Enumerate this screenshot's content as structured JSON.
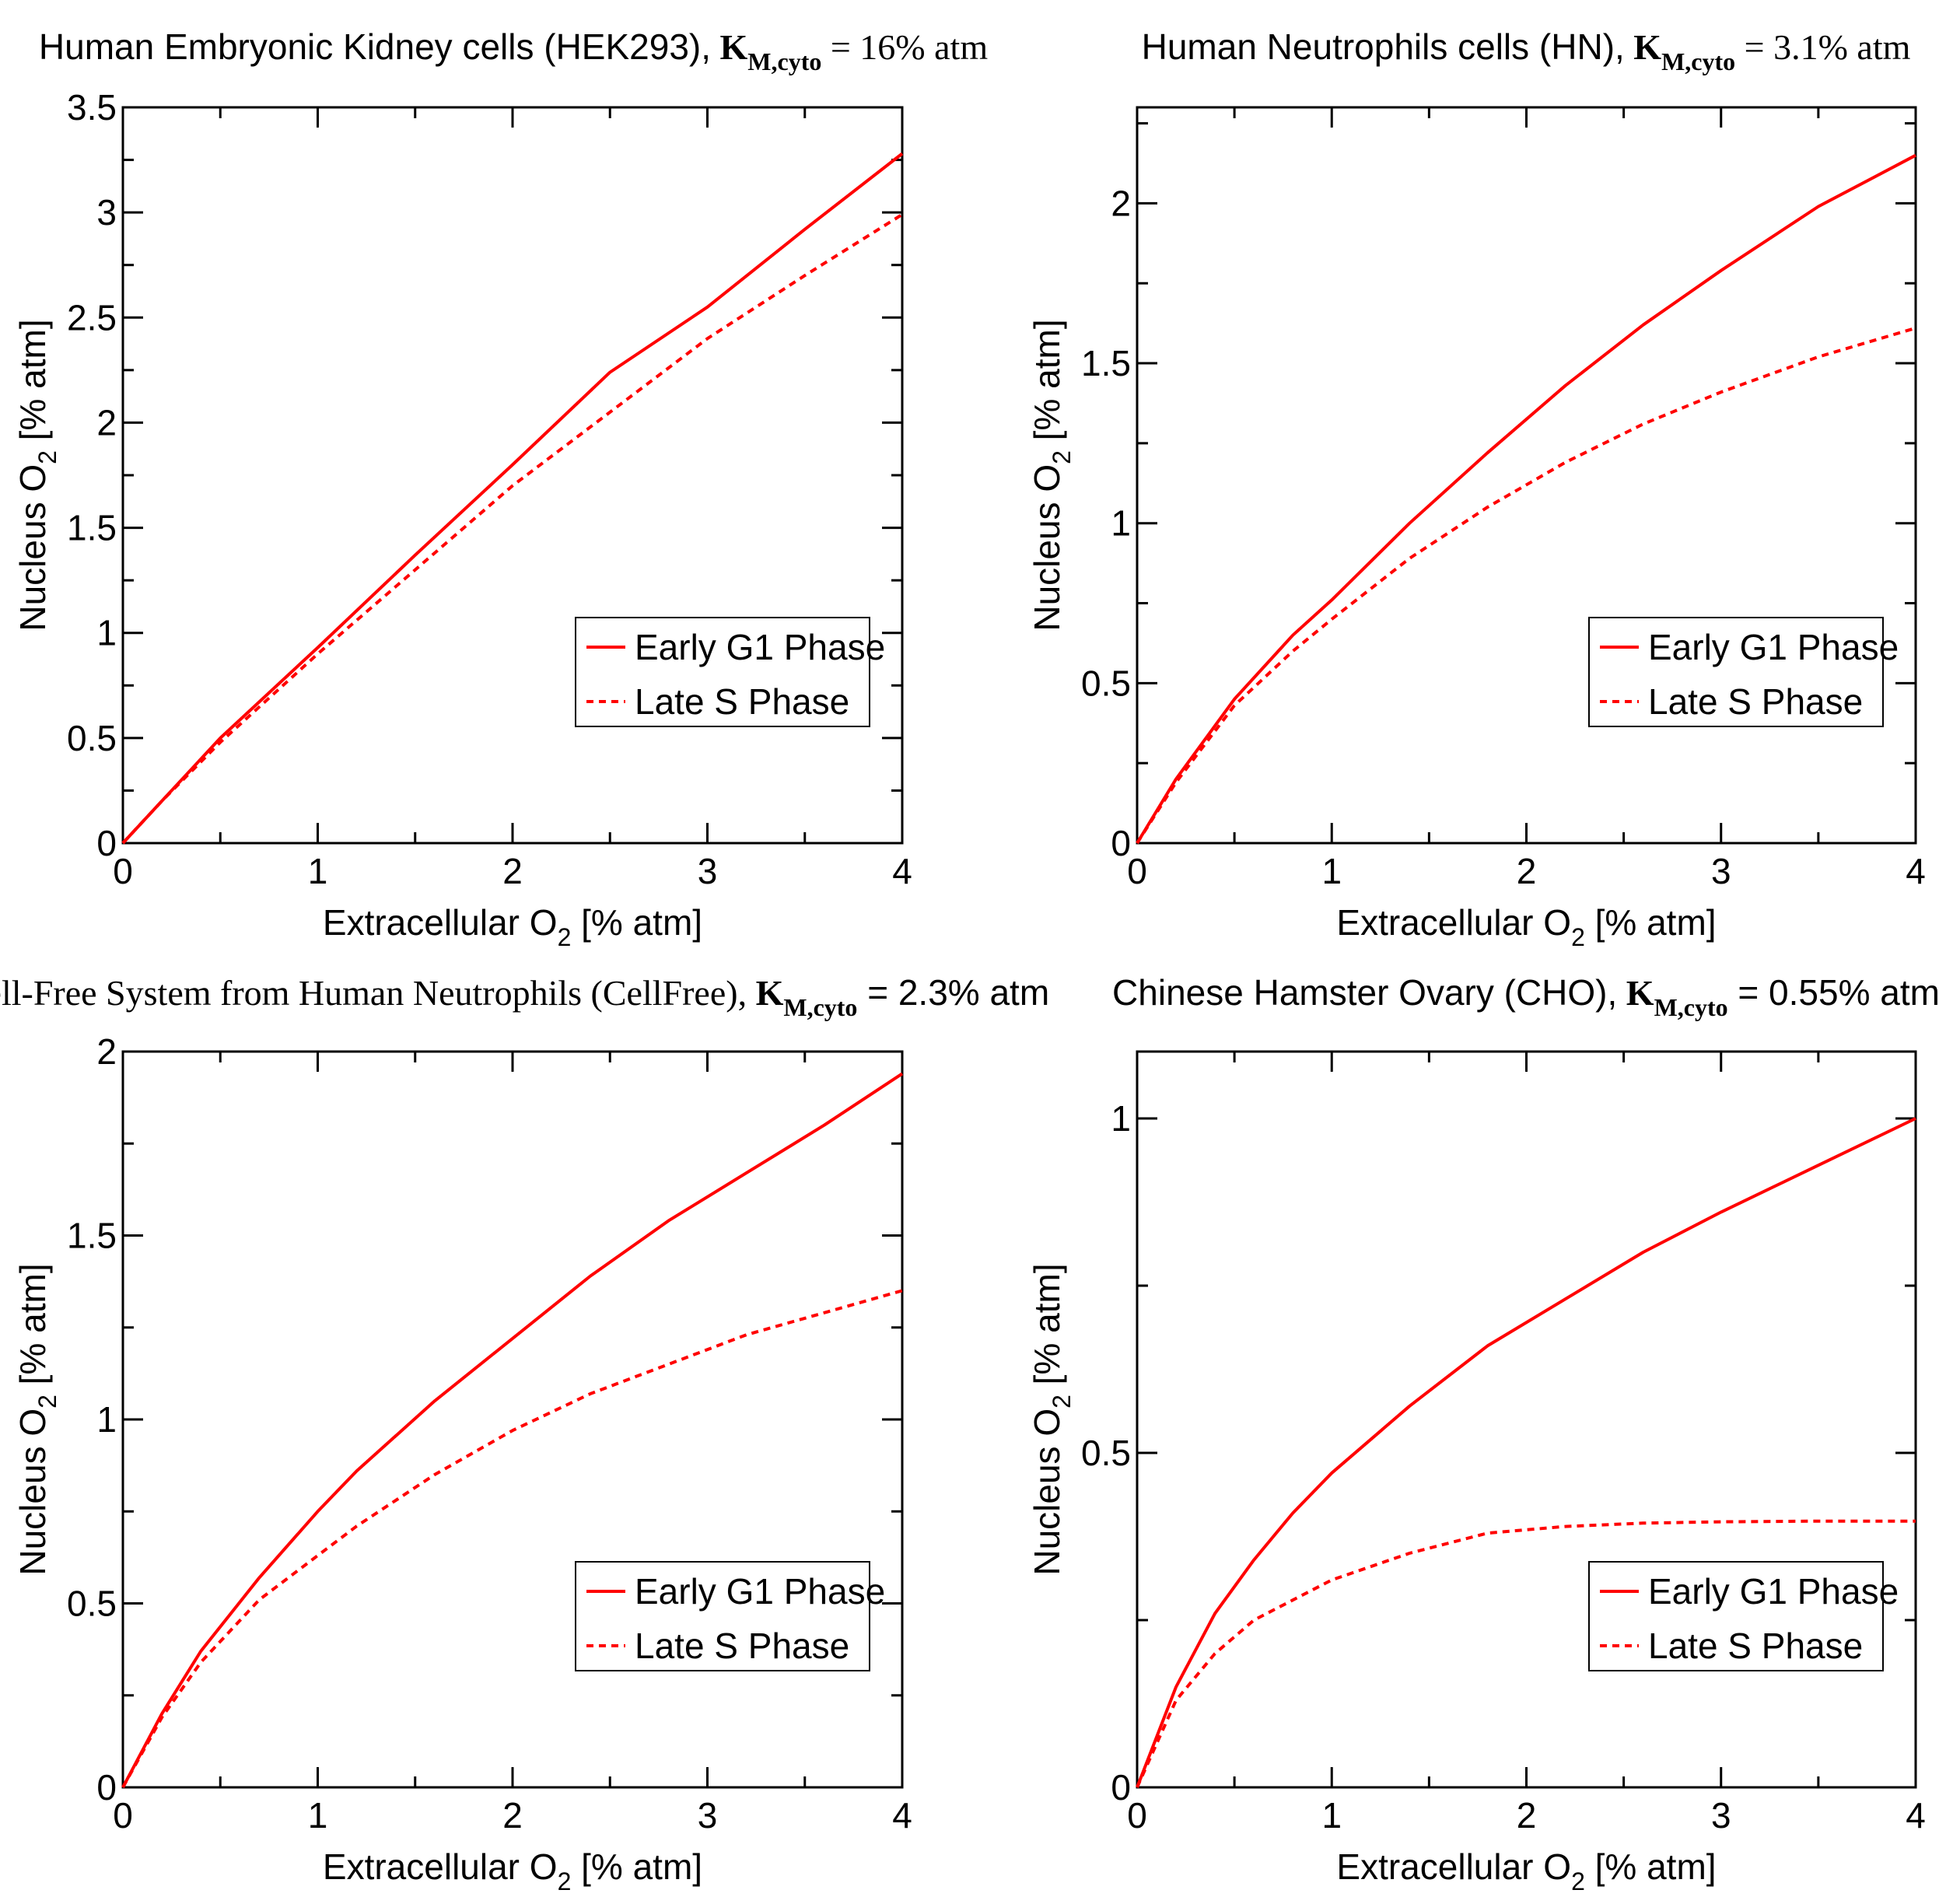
{
  "figure": {
    "series_colors": {
      "early": "#ff0000",
      "late": "#ff0000"
    },
    "frame_color": "#000000"
  },
  "chart_data": [
    {
      "type": "line",
      "title": {
        "text": "Human Embryonic Kidney cells (HEK293),",
        "symbol": "K",
        "subscript": "M,cyto",
        "value": "= 16% atm",
        "text_style": "sans",
        "value_style": "serif"
      },
      "xlabel": "Extracellular O",
      "xlabel_sub": "2",
      "xlabel_unit": "[% atm]",
      "ylabel": "Nucleus O",
      "ylabel_sub": "2",
      "ylabel_unit": "[% atm]",
      "xlim": [
        0,
        4
      ],
      "ylim": [
        0,
        3.5
      ],
      "xticks": [
        0,
        1,
        2,
        3,
        4
      ],
      "xtick_labels": [
        "0",
        "1",
        "2",
        "3",
        "4"
      ],
      "yticks": [
        0,
        0.5,
        1,
        1.5,
        2,
        2.5,
        3,
        3.5
      ],
      "ytick_labels": [
        "0",
        "0.5",
        "1",
        "1.5",
        "2",
        "2.5",
        "3",
        "3.5"
      ],
      "legend": {
        "position": "lower-right",
        "entries": [
          "Early G1 Phase",
          "Late S Phase"
        ]
      },
      "series": [
        {
          "name": "Early G1 Phase",
          "style": "solid",
          "x": [
            0,
            0.2,
            0.5,
            1,
            1.5,
            2,
            2.5,
            3,
            3.5,
            4
          ],
          "y": [
            0,
            0.2,
            0.5,
            0.93,
            1.37,
            1.8,
            2.24,
            2.55,
            2.92,
            3.28
          ]
        },
        {
          "name": "Late S Phase",
          "style": "dashed",
          "x": [
            0,
            0.2,
            0.5,
            1,
            1.5,
            2,
            2.5,
            3,
            3.5,
            4
          ],
          "y": [
            0,
            0.2,
            0.48,
            0.9,
            1.3,
            1.7,
            2.05,
            2.4,
            2.7,
            2.99
          ]
        }
      ]
    },
    {
      "type": "line",
      "title": {
        "text": "Human Neutrophils cells (HN),",
        "symbol": "K",
        "subscript": "M,cyto",
        "value": "= 3.1% atm",
        "text_style": "sans",
        "value_style": "serif"
      },
      "xlabel": "Extracellular O",
      "xlabel_sub": "2",
      "xlabel_unit": "[% atm]",
      "ylabel": "Nucleus O",
      "ylabel_sub": "2",
      "ylabel_unit": "[% atm]",
      "xlim": [
        0,
        4
      ],
      "ylim": [
        0,
        2.3
      ],
      "xticks": [
        0,
        1,
        2,
        3,
        4
      ],
      "xtick_labels": [
        "0",
        "1",
        "2",
        "3",
        "4"
      ],
      "yticks": [
        0,
        0.5,
        1,
        1.5,
        2
      ],
      "ytick_labels": [
        "0",
        "0.5",
        "1",
        "1.5",
        "2"
      ],
      "legend": {
        "position": "lower-right",
        "entries": [
          "Early G1 Phase",
          "Late S Phase"
        ]
      },
      "series": [
        {
          "name": "Early G1 Phase",
          "style": "solid",
          "x": [
            0,
            0.2,
            0.5,
            0.8,
            1,
            1.4,
            1.8,
            2.2,
            2.6,
            3,
            3.5,
            4
          ],
          "y": [
            0,
            0.2,
            0.45,
            0.65,
            0.76,
            1.0,
            1.22,
            1.43,
            1.62,
            1.79,
            1.99,
            2.15
          ]
        },
        {
          "name": "Late S Phase",
          "style": "dashed",
          "x": [
            0,
            0.2,
            0.5,
            0.8,
            1,
            1.4,
            1.8,
            2.2,
            2.6,
            3,
            3.5,
            4
          ],
          "y": [
            0,
            0.19,
            0.43,
            0.6,
            0.7,
            0.89,
            1.05,
            1.19,
            1.31,
            1.41,
            1.52,
            1.61
          ]
        }
      ]
    },
    {
      "type": "line",
      "title": {
        "text": "Cell-Free System from Human Neutrophils (CellFree),",
        "symbol": "K",
        "subscript": "M,cyto",
        "value": "= 2.3% atm",
        "text_style": "serif",
        "value_style": "sans"
      },
      "xlabel": "Extracellular O",
      "xlabel_sub": "2",
      "xlabel_unit": "[% atm]",
      "ylabel": "Nucleus O",
      "ylabel_sub": "2",
      "ylabel_unit": "[% atm]",
      "xlim": [
        0,
        4
      ],
      "ylim": [
        0,
        2
      ],
      "xticks": [
        0,
        1,
        2,
        3,
        4
      ],
      "xtick_labels": [
        "0",
        "1",
        "2",
        "3",
        "4"
      ],
      "yticks": [
        0,
        0.5,
        1,
        1.5,
        2
      ],
      "ytick_labels": [
        "0",
        "0.5",
        "1",
        "1.5",
        "2"
      ],
      "legend": {
        "position": "lower-right",
        "entries": [
          "Early G1 Phase",
          "Late S Phase"
        ]
      },
      "series": [
        {
          "name": "Early G1 Phase",
          "style": "solid",
          "x": [
            0,
            0.2,
            0.4,
            0.7,
            1,
            1.2,
            1.6,
            2,
            2.4,
            2.8,
            3.2,
            3.6,
            4
          ],
          "y": [
            0,
            0.2,
            0.37,
            0.57,
            0.75,
            0.86,
            1.05,
            1.22,
            1.39,
            1.54,
            1.67,
            1.8,
            1.94
          ]
        },
        {
          "name": "Late S Phase",
          "style": "dashed",
          "x": [
            0,
            0.2,
            0.4,
            0.7,
            1,
            1.2,
            1.6,
            2,
            2.4,
            2.8,
            3.2,
            3.6,
            4
          ],
          "y": [
            0,
            0.19,
            0.34,
            0.51,
            0.63,
            0.71,
            0.85,
            0.97,
            1.07,
            1.15,
            1.23,
            1.29,
            1.35
          ]
        }
      ]
    },
    {
      "type": "line",
      "title": {
        "text": "Chinese Hamster Ovary (CHO),",
        "symbol": "K",
        "subscript": "M,cyto",
        "value": "= 0.55% atm",
        "text_style": "sans",
        "value_style": "sans"
      },
      "xlabel": "Extracellular O",
      "xlabel_sub": "2",
      "xlabel_unit": "[% atm]",
      "ylabel": "Nucleus O",
      "ylabel_sub": "2",
      "ylabel_unit": "[% atm]",
      "xlim": [
        0,
        4
      ],
      "ylim": [
        0,
        1.1
      ],
      "xticks": [
        0,
        1,
        2,
        3,
        4
      ],
      "xtick_labels": [
        "0",
        "1",
        "2",
        "3",
        "4"
      ],
      "yticks": [
        0,
        0.5,
        1
      ],
      "ytick_labels": [
        "0",
        "0.5",
        "1"
      ],
      "legend": {
        "position": "lower-right",
        "entries": [
          "Early G1 Phase",
          "Late S Phase"
        ]
      },
      "series": [
        {
          "name": "Early G1 Phase",
          "style": "solid",
          "x": [
            0,
            0.2,
            0.4,
            0.6,
            0.8,
            1,
            1.4,
            1.8,
            2.2,
            2.6,
            3,
            3.5,
            4
          ],
          "y": [
            0,
            0.15,
            0.26,
            0.34,
            0.41,
            0.47,
            0.57,
            0.66,
            0.73,
            0.8,
            0.86,
            0.93,
            1.0
          ]
        },
        {
          "name": "Late S Phase",
          "style": "dashed",
          "x": [
            0,
            0.2,
            0.4,
            0.6,
            0.8,
            1,
            1.4,
            1.8,
            2.2,
            2.6,
            3,
            3.5,
            4
          ],
          "y": [
            0,
            0.13,
            0.2,
            0.25,
            0.28,
            0.31,
            0.35,
            0.38,
            0.39,
            0.395,
            0.397,
            0.398,
            0.398
          ]
        }
      ]
    }
  ]
}
